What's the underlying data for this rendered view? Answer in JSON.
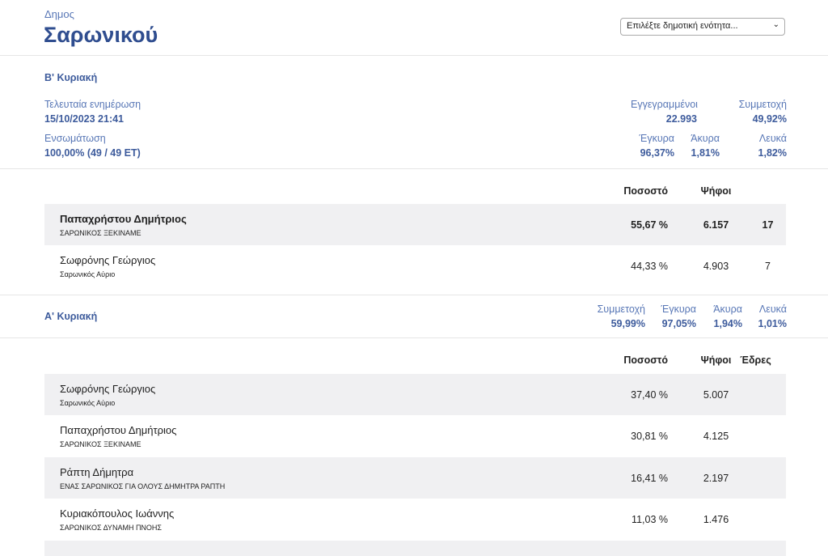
{
  "header": {
    "subtitle": "Δημος",
    "title": "Σαρωνικού",
    "select_value": "Επιλέξτε δημοτική ενότητα..."
  },
  "round_b": {
    "title": "Β' Κυριακή",
    "last_update_label": "Τελευταία ενημέρωση",
    "last_update_value": "15/10/2023 21:41",
    "integration_label": "Ενσωμάτωση",
    "integration_value": "100,00% (49 / 49 ΕΤ)",
    "registered_label": "Εγγεγραμμένοι",
    "registered_value": "22.993",
    "turnout_label": "Συμμετοχή",
    "turnout_value": "49,92%",
    "valid_label": "Έγκυρα",
    "valid_value": "96,37%",
    "invalid_label": "Άκυρα",
    "invalid_value": "1,81%",
    "blank_label": "Λευκά",
    "blank_value": "1,82%",
    "col_percent": "Ποσοστό",
    "col_votes": "Ψήφοι",
    "candidates": [
      {
        "name": "Παπαχρήστου Δημήτριος",
        "party": "ΣΑΡΩΝΙΚΟΣ ΞΕΚΙΝΑΜΕ",
        "percent": "55,67 %",
        "votes": "6.157",
        "seats": "17"
      },
      {
        "name": "Σωφρόνης Γεώργιος",
        "party": "Σαρωνικός Αύριο",
        "percent": "44,33 %",
        "votes": "4.903",
        "seats": "7"
      }
    ]
  },
  "round_a": {
    "title": "Α' Κυριακή",
    "turnout_label": "Συμμετοχή",
    "turnout_value": "59,99%",
    "valid_label": "Έγκυρα",
    "valid_value": "97,05%",
    "invalid_label": "Άκυρα",
    "invalid_value": "1,94%",
    "blank_label": "Λευκά",
    "blank_value": "1,01%",
    "col_percent": "Ποσοστό",
    "col_votes": "Ψήφοι",
    "col_seats": "Έδρες",
    "candidates": [
      {
        "name": "Σωφρόνης Γεώργιος",
        "party": "Σαρωνικός Αύριο",
        "percent": "37,40 %",
        "votes": "5.007"
      },
      {
        "name": "Παπαχρήστου Δημήτριος",
        "party": "ΣΑΡΩΝΙΚΟΣ ΞΕΚΙΝΑΜΕ",
        "percent": "30,81 %",
        "votes": "4.125"
      },
      {
        "name": "Ράπτη Δήμητρα",
        "party": "ΕΝΑΣ ΣΑΡΩΝΙΚΟΣ ΓΙΑ ΟΛΟΥΣ ΔΗΜΗΤΡΑ ΡΑΠΤΗ",
        "percent": "16,41 %",
        "votes": "2.197"
      },
      {
        "name": "Κυριακόπουλος Ιωάννης",
        "party": "ΣΑΡΩΝΙΚΟΣ ΔΥΝΑΜΗ ΠΝΟΗΣ",
        "percent": "11,03 %",
        "votes": "1.476"
      }
    ]
  },
  "colors": {
    "accent": "#3d5b9c",
    "row_shade": "#f0f0f2",
    "divider": "#e6e6e6"
  }
}
